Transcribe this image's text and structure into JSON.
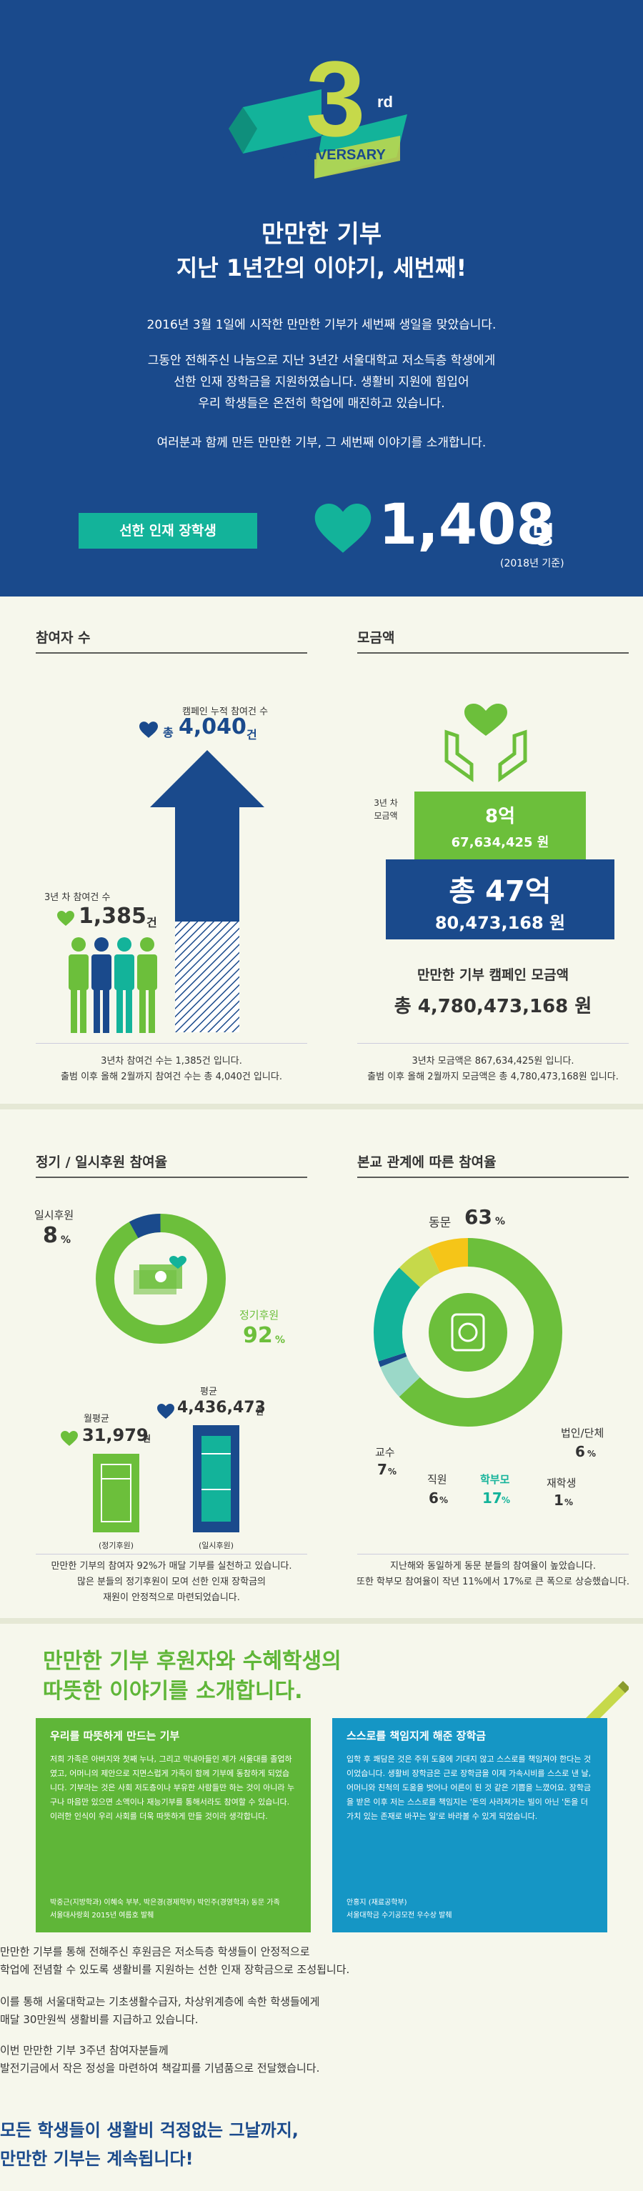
{
  "hero": {
    "logo_number": "3",
    "logo_suffix": "rd",
    "logo_text": "ANNIVERSARY",
    "title": "만만한 기부",
    "subtitle": "지난 1년간의 이야기, 세번째!",
    "p1": "2016년 3월 1일에 시작한 만만한 기부가 세번째 생일을 맞았습니다.",
    "p2a": "그동안 전해주신 나눔으로 지난 3년간 서울대학교 저소득층 학생에게",
    "p2b": "선한 인재 장학금을 지원하였습니다. 생활비 지원에 힘입어",
    "p2c": "우리 학생들은 온전히 학업에 매진하고 있습니다.",
    "p3": "여러분과 함께 만든 만만한 기부, 그 세번째 이야기를 소개합니다.",
    "badge": "선한 인재 장학생",
    "scholars": "1,408",
    "scholars_unit": "명",
    "scholars_note": "(2018년 기준)"
  },
  "participants": {
    "heading": "참여자 수",
    "total_label": "캠페인 누적 참여건 수",
    "total_prefix": "총",
    "total_value": "4,040",
    "total_unit": "건",
    "year3_label": "3년 차 참여건 수",
    "year3_value": "1,385",
    "year3_unit": "건",
    "caption1": "3년차 참여건 수는 1,385건 입니다.",
    "caption2": "출범 이후 올해 2월까지 참여건 수는 총 4,040건 입니다."
  },
  "donations": {
    "heading": "모금액",
    "year3_label1": "3년 차",
    "year3_label2": "모금액",
    "year3_short": "8억",
    "year3_full": "67,634,425 원",
    "total_short": "총 47억",
    "total_full": "80,473,168 원",
    "campaign_label": "만만한 기부 캠페인 모금액",
    "campaign_total": "총 4,780,473,168 원",
    "caption1": "3년차 모금액은 867,634,425원 입니다.",
    "caption2": "출범 이후 올해 2월까지 모금액은 총 4,780,473,168원 입니다."
  },
  "regular": {
    "heading": "정기 / 일시후원 참여율",
    "onetime_label": "일시후원",
    "onetime_value": "8",
    "regular_label": "정기후원",
    "regular_value": "92",
    "pct": "%",
    "monthly_label": "월평균",
    "monthly_value": "31,979",
    "avg_label": "평균",
    "avg_value": "4,436,473",
    "won": "원",
    "bar1_label": "(정기후원)",
    "bar2_label": "(일시후원)",
    "caption1": "만만한 기부의 참여자 92%가 매달 기부를 실천하고 있습니다.",
    "caption2": "많은 분들의 정기후원이 모여 선한 인재 장학금의",
    "caption3": "재원이 안정적으로 마련되었습니다."
  },
  "relation": {
    "heading": "본교 관계에 따른 참여율",
    "alumni": "동문",
    "alumni_v": "63",
    "corp": "법인/단체",
    "corp_v": "6",
    "student": "재학생",
    "student_v": "1",
    "parent": "학부모",
    "parent_v": "17",
    "staff": "직원",
    "staff_v": "6",
    "prof": "교수",
    "prof_v": "7",
    "pct": "%",
    "caption1": "지난해와 동일하게 동문 분들의 참여율이 높았습니다.",
    "caption2": "또한 학부모 참여율이 작년 11%에서 17%로 큰 폭으로 상승했습니다."
  },
  "stories": {
    "heading1": "만만한 기부 후원자와 수혜학생의",
    "heading2": "따뜻한 이야기를 소개합니다.",
    "g_title": "우리를 따뜻하게 만드는 기부",
    "g_text": "저희 가족은 아버지와 첫째 누나, 그리고 막내아들인 제가 서울대를 졸업하였고, 어머니의 제안으로 지면스럽게 가족이 함께 기부에 동참하게 되었습니다. 기부라는 것은 사회 저도층이나 부유한 사람들만 하는 것이 아니라 누구나 마음만 있으면 소액이나 재능기부를 통해서라도 참여할 수 있습니다. 이러한 인식이 우리 사회를 더욱 따뜻하게 만들 것이라 생각합니다.",
    "g_sign1": "박중근(지방학과) 이혜숙 부부, 박은경(경제학부) 박인주(경영학과) 동문 가족",
    "g_sign2": "서울대사랑회 2015년 여름호 발췌",
    "b_title": "스스로를 책임지게 해준 장학금",
    "b_text": "입학 후 쾌담은 것은 주위 도움에 기대지 않고 스스로를 책임져야 한다는 것이었습니다. 생활비 장학금은 근로 장학금을 이제 가속시비를 스스로 낸 날, 어머니와 친척의 도움을 벗어나 어른이 된 것 같은 기쁨을 느꼈어요. 장학금을 받은 이후 저는 스스로를 책임지는 '돈의 사라져가는 빌이 아닌 '돈을 더 가치 있는 존재로 바꾸는 일'로 바라볼 수 있게 되었습니다.",
    "b_sign1": "안홍지 (재료공학부)",
    "b_sign2": "서울대학금 수기공모전 우수상 발췌"
  },
  "closing": {
    "p1a": "만만한 기부를 통해 전해주신 후원금은 저소득층 학생들이 안정적으로",
    "p1b": "학업에 전념할 수 있도록 생활비를 지원하는 선한 인재 장학금으로 조성됩니다.",
    "p2a": "이를 통해 서울대학교는 기초생활수급자, 차상위계층에 속한 학생들에게",
    "p2b": "매달 30만원씩 생활비를 지급하고 있습니다.",
    "p3a": "이번 만만한 기부 3주년 참여자분들께",
    "p3b": "발전기금에서 작은 정성을 마련하여 책갈피를 기념품으로 전달했습니다.",
    "final1": "모든 학생들이 생활비 걱정없는 그날까지,",
    "final2": "만만한 기부는 계속됩니다!"
  },
  "colors": {
    "navy": "#1a4a8c",
    "green": "#6cbf3b",
    "teal": "#13b39a",
    "blue": "#1596c5",
    "yellow": "#f5c518",
    "lime": "#c6d94a"
  }
}
